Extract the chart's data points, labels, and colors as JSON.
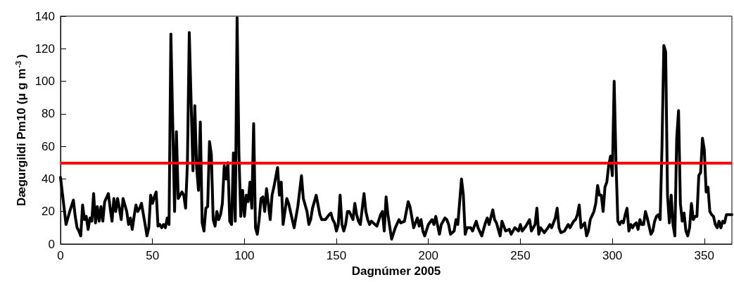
{
  "chart_data": {
    "type": "line",
    "xlabel": "Dagnúmer 2005",
    "ylabel": "Dægurgildi Pm10 (μ g m$^{-3}$)",
    "x": [
      0,
      3,
      5,
      7,
      8,
      9,
      10,
      11,
      12,
      13,
      14,
      15,
      16,
      17,
      18,
      19,
      20,
      21,
      22,
      23,
      24,
      26,
      27,
      28,
      29,
      30,
      31,
      32,
      33,
      34,
      36,
      37,
      38,
      39,
      40,
      41,
      42,
      43,
      44,
      46,
      47,
      48,
      49,
      50,
      51,
      52,
      53,
      54,
      55,
      56,
      57,
      58,
      59,
      60,
      62,
      63,
      64,
      66,
      67,
      68,
      69,
      70,
      72,
      73,
      74,
      75,
      76,
      77,
      78,
      79,
      80,
      81,
      82,
      83,
      84,
      85,
      86,
      87,
      88,
      89,
      90,
      91,
      92,
      93,
      94,
      95,
      96,
      97,
      98,
      99,
      100,
      101,
      102,
      103,
      104,
      105,
      106,
      107,
      108,
      109,
      110,
      111,
      112,
      114,
      115,
      116,
      118,
      119,
      120,
      121,
      123,
      124,
      125,
      127,
      129,
      131,
      132,
      134,
      135,
      136,
      137,
      139,
      141,
      142,
      144,
      146,
      147,
      148,
      149,
      150,
      151,
      152,
      153,
      154,
      155,
      156,
      157,
      159,
      160,
      161,
      162,
      163,
      165,
      166,
      167,
      168,
      169,
      171,
      172,
      174,
      175,
      176,
      177,
      178,
      180,
      182,
      184,
      185,
      187,
      189,
      190,
      192,
      194,
      195,
      196,
      197,
      198,
      200,
      202,
      203,
      204,
      206,
      207,
      209,
      210,
      211,
      212,
      214,
      215,
      216,
      218,
      219,
      220,
      221,
      223,
      224,
      226,
      227,
      229,
      231,
      232,
      233,
      235,
      236,
      237,
      239,
      240,
      242,
      244,
      245,
      247,
      249,
      250,
      251,
      253,
      255,
      256,
      258,
      259,
      260,
      261,
      263,
      265,
      266,
      267,
      269,
      270,
      271,
      272,
      274,
      276,
      277,
      279,
      280,
      281,
      282,
      283,
      285,
      286,
      287,
      288,
      290,
      291,
      292,
      293,
      294,
      295,
      296,
      297,
      298,
      299,
      300,
      301,
      302,
      303,
      304,
      305,
      306,
      307,
      308,
      309,
      310,
      311,
      312,
      313,
      314,
      315,
      316,
      317,
      318,
      319,
      320,
      321,
      322,
      323,
      324,
      325,
      326,
      327,
      328,
      329,
      330,
      331,
      332,
      333,
      334,
      335,
      336,
      337,
      338,
      339,
      340,
      341,
      342,
      343,
      344,
      345,
      346,
      347,
      348,
      349,
      350,
      351,
      352,
      353,
      354,
      355,
      356,
      357,
      358,
      359,
      360,
      361,
      362,
      365
    ],
    "series": [
      {
        "color": "#000000",
        "values": [
          41,
          12,
          20,
          27,
          17,
          10,
          8,
          5,
          24,
          15,
          17,
          9,
          16,
          14,
          31,
          13,
          23,
          14,
          23,
          14,
          26,
          31,
          22,
          14,
          28,
          20,
          28,
          22,
          15,
          28,
          20,
          12,
          16,
          9,
          17,
          24,
          20,
          22,
          25,
          12,
          5,
          10,
          30,
          25,
          29,
          32,
          11,
          12,
          10,
          12,
          10,
          16,
          12,
          129,
          20,
          69,
          28,
          32,
          30,
          22,
          50,
          130,
          45,
          85,
          47,
          33,
          75,
          13,
          8,
          22,
          23,
          63,
          55,
          15,
          11,
          20,
          15,
          18,
          25,
          48,
          40,
          50,
          14,
          12,
          56,
          14,
          139,
          55,
          17,
          33,
          17,
          30,
          26,
          38,
          22,
          74,
          10,
          6,
          15,
          28,
          29,
          20,
          34,
          15,
          30,
          35,
          47,
          30,
          38,
          12,
          28,
          25,
          20,
          10,
          23,
          42,
          28,
          20,
          12,
          15,
          22,
          30,
          18,
          15,
          15,
          18,
          19,
          15,
          13,
          8,
          12,
          30,
          12,
          8,
          12,
          20,
          20,
          15,
          25,
          18,
          14,
          12,
          31,
          20,
          15,
          12,
          14,
          12,
          11,
          18,
          20,
          8,
          29,
          18,
          3,
          10,
          15,
          13,
          14,
          26,
          23,
          10,
          16,
          11,
          15,
          8,
          5,
          12,
          15,
          12,
          17,
          6,
          12,
          16,
          15,
          12,
          6,
          8,
          15,
          12,
          40,
          30,
          6,
          10,
          10,
          8,
          14,
          10,
          5,
          13,
          16,
          12,
          21,
          15,
          13,
          5,
          14,
          8,
          9,
          6,
          10,
          8,
          12,
          8,
          11,
          15,
          8,
          12,
          22,
          6,
          10,
          7,
          10,
          12,
          10,
          16,
          22,
          10,
          7,
          8,
          12,
          10,
          14,
          15,
          18,
          24,
          10,
          13,
          5,
          8,
          15,
          20,
          25,
          36,
          30,
          30,
          20,
          35,
          38,
          48,
          54,
          42,
          100,
          50,
          14,
          12,
          14,
          13,
          18,
          22,
          8,
          12,
          10,
          12,
          13,
          9,
          15,
          12,
          12,
          20,
          16,
          11,
          6,
          8,
          14,
          17,
          18,
          15,
          60,
          122,
          118,
          30,
          13,
          30,
          12,
          5,
          65,
          82,
          25,
          14,
          19,
          8,
          5,
          10,
          25,
          15,
          17,
          17,
          42,
          44,
          65,
          58,
          32,
          35,
          20,
          18,
          17,
          12,
          10,
          14,
          10,
          14,
          13,
          18,
          18
        ]
      }
    ],
    "xlim": [
      0,
      365
    ],
    "xticks": [
      0,
      50,
      100,
      150,
      200,
      250,
      300,
      350
    ],
    "ylim": [
      0,
      140
    ],
    "yticks": [
      0,
      20,
      40,
      60,
      80,
      100,
      120,
      140
    ],
    "ref_lines": [
      {
        "axis": "y",
        "value": 50,
        "color": "#ff0000",
        "line_style": "solid"
      }
    ],
    "grid": false,
    "marker": "none",
    "line_style": "solid"
  }
}
